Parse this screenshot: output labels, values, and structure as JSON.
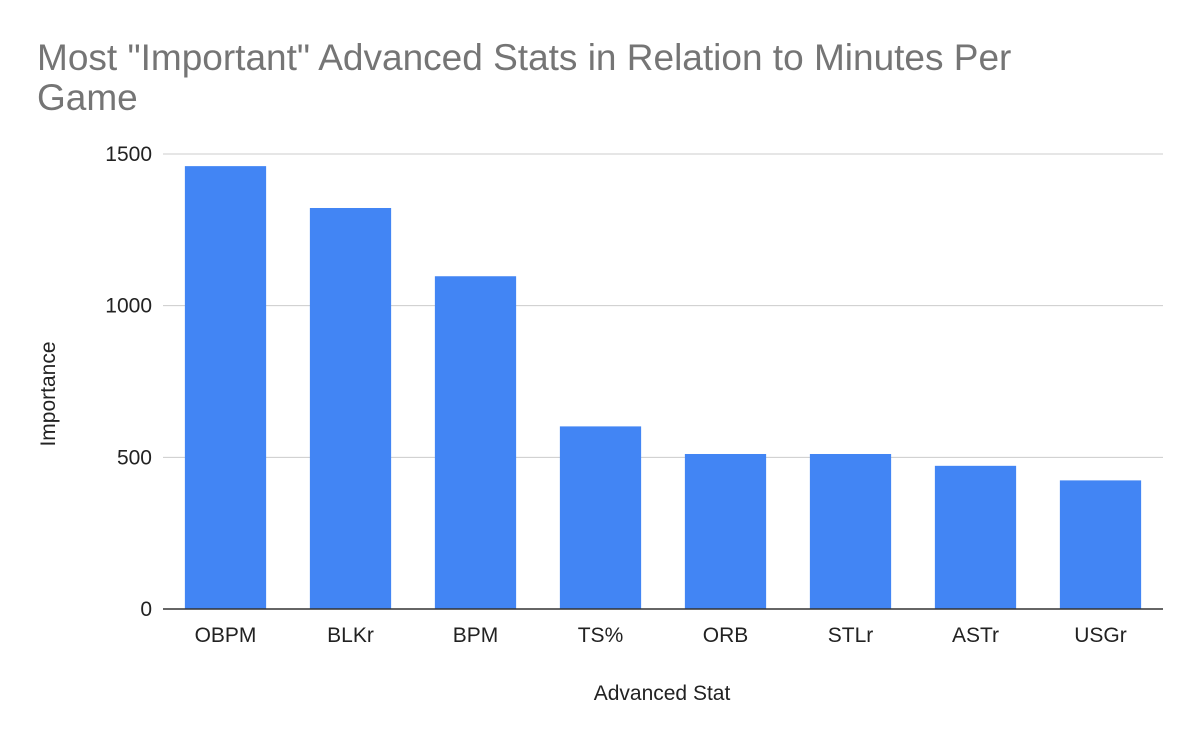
{
  "chart_data": {
    "type": "bar",
    "title_lines": [
      "Most \"Important\" Advanced Stats in Relation to Minutes Per",
      "Game"
    ],
    "xlabel": "Advanced Stat",
    "ylabel": "Importance",
    "categories": [
      "OBPM",
      "BLKr",
      "BPM",
      "TS%",
      "ORB",
      "STLr",
      "ASTr",
      "USGr"
    ],
    "values": [
      1460,
      1322,
      1097,
      602,
      511,
      511,
      472,
      424
    ],
    "ylim": [
      0,
      1500
    ],
    "yticks": [
      0,
      500,
      1000,
      1500
    ],
    "grid": true,
    "legend": "none",
    "bar_color": "#4285f4"
  }
}
